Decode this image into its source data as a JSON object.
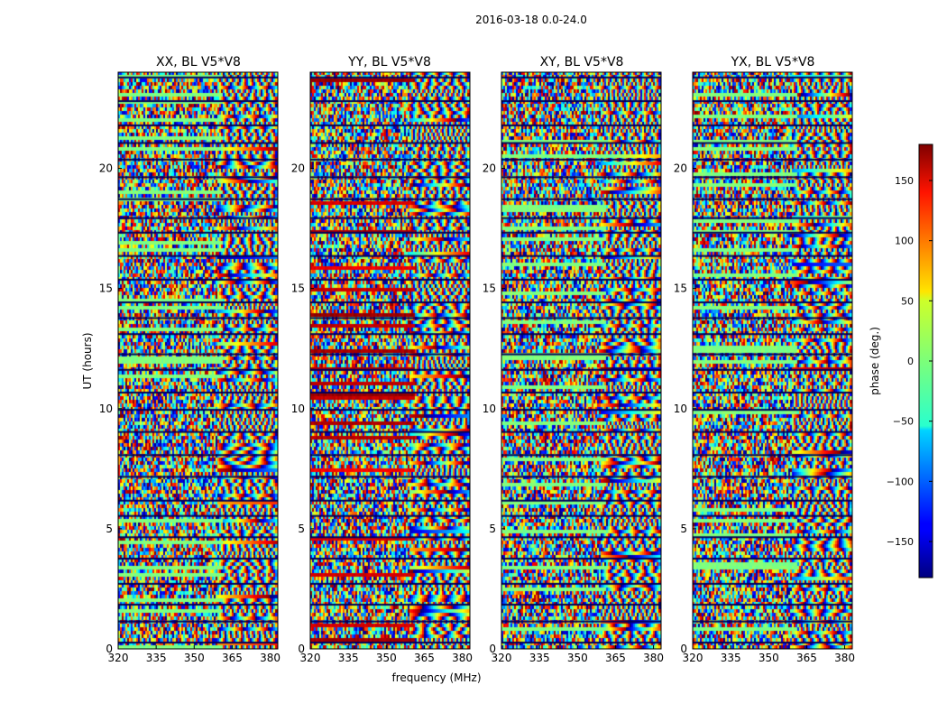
{
  "chart_data": {
    "type": "heatmap",
    "suptitle": "2016-03-18 0.0-24.0",
    "xlabel": "frequency (MHz)",
    "ylabel": "UT (hours)",
    "xlim": [
      320,
      383
    ],
    "ylim": [
      0,
      24
    ],
    "xticks": [
      320,
      335,
      350,
      365,
      380
    ],
    "yticks": [
      0,
      5,
      10,
      15,
      20
    ],
    "panels": [
      {
        "title": "XX, BL V5*V8"
      },
      {
        "title": "YY, BL V5*V8"
      },
      {
        "title": "XY, BL V5*V8"
      },
      {
        "title": "YX, BL V5*V8"
      }
    ],
    "colorbar": {
      "label": "phase (deg.)",
      "range": [
        -180,
        180
      ],
      "ticks": [
        -150,
        -100,
        -50,
        0,
        50,
        100,
        150
      ],
      "colormap": "jet"
    }
  }
}
